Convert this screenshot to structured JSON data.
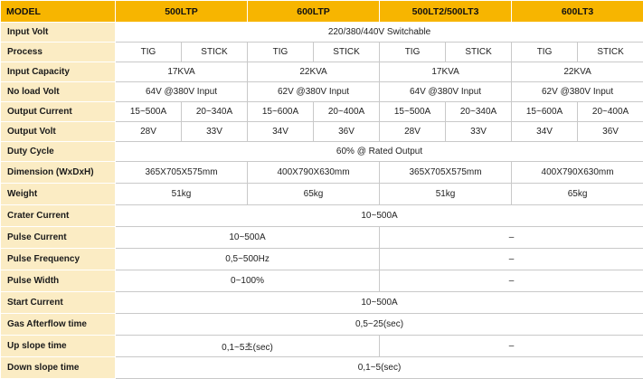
{
  "header": {
    "model": "MODEL",
    "models": [
      "500LTP",
      "600LTP",
      "500LT2/500LT3",
      "600LT3"
    ]
  },
  "rows": {
    "input_volt": {
      "label": "Input Volt",
      "value": "220/380/440V Switchable"
    },
    "process": {
      "label": "Process",
      "values": [
        "TIG",
        "STICK",
        "TIG",
        "STICK",
        "TIG",
        "STICK",
        "TIG",
        "STICK"
      ]
    },
    "input_capacity": {
      "label": "Input Capacity",
      "values": [
        "17KVA",
        "22KVA",
        "17KVA",
        "22KVA"
      ]
    },
    "no_load_volt": {
      "label": "No load Volt",
      "values": [
        "64V @380V Input",
        "62V @380V Input",
        "64V @380V Input",
        "62V @380V Input"
      ]
    },
    "output_current": {
      "label": "Output Current",
      "values": [
        "15~500A",
        "20~340A",
        "15~600A",
        "20~400A",
        "15~500A",
        "20~340A",
        "15~600A",
        "20~400A"
      ]
    },
    "output_volt": {
      "label": "Output Volt",
      "values": [
        "28V",
        "33V",
        "34V",
        "36V",
        "28V",
        "33V",
        "34V",
        "36V"
      ]
    },
    "duty_cycle": {
      "label": "Duty Cycle",
      "value": "60% @ Rated Output"
    },
    "dimension": {
      "label": "Dimension (WxDxH)",
      "values": [
        "365X705X575mm",
        "400X790X630mm",
        "365X705X575mm",
        "400X790X630mm"
      ]
    },
    "weight": {
      "label": "Weight",
      "values": [
        "51kg",
        "65kg",
        "51kg",
        "65kg"
      ]
    },
    "crater_current": {
      "label": "Crater Current",
      "value": "10~500A"
    },
    "pulse_current": {
      "label": "Pulse Current",
      "left": "10~500A",
      "right": "–"
    },
    "pulse_frequency": {
      "label": "Pulse Frequency",
      "left": "0,5~500Hz",
      "right": "–"
    },
    "pulse_width": {
      "label": "Pulse Width",
      "left": "0~100%",
      "right": "–"
    },
    "start_current": {
      "label": "Start Current",
      "value": "10~500A"
    },
    "gas_afterflow": {
      "label": "Gas Afterflow time",
      "value": "0,5~25(sec)"
    },
    "up_slope": {
      "label": "Up slope time",
      "left": "0,1~5초(sec)",
      "right": "–"
    },
    "down_slope": {
      "label": "Down slope time",
      "value": "0,1~5(sec)"
    }
  }
}
